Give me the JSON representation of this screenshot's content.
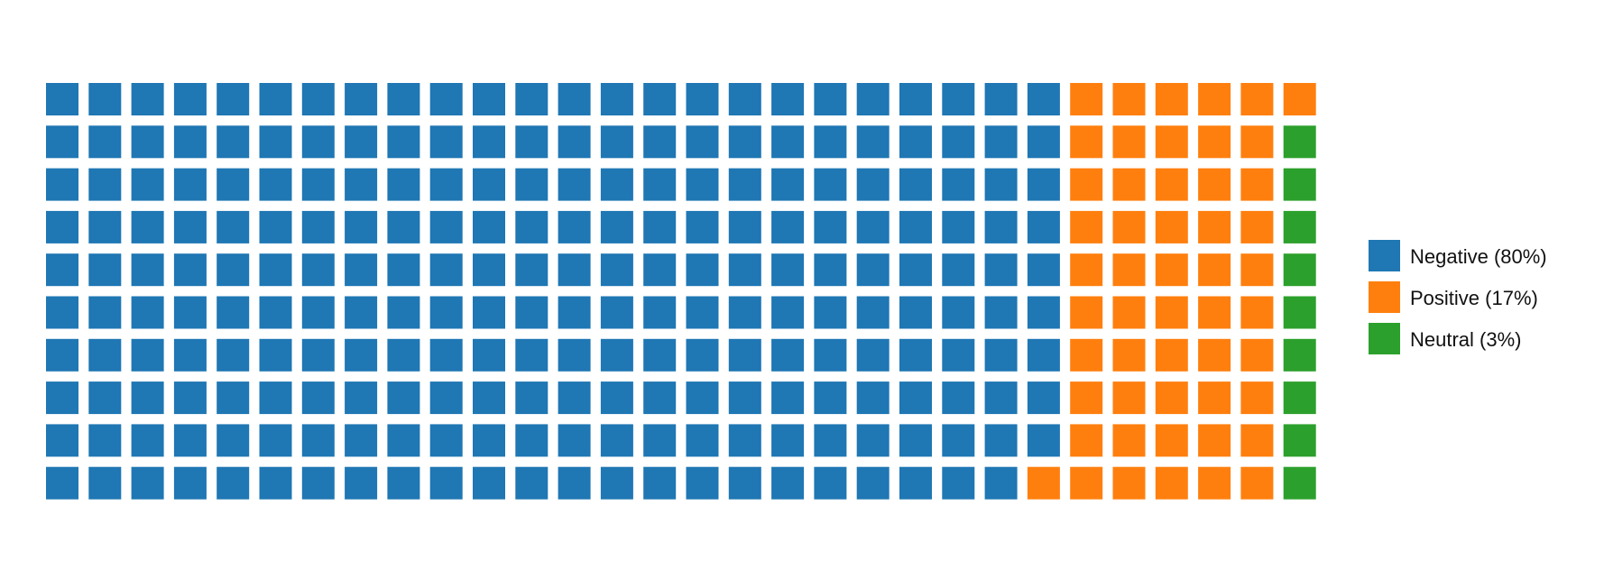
{
  "chart_data": {
    "type": "waffle",
    "rows": 10,
    "columns": 30,
    "fill_order": "column-major, top-to-bottom, left-to-right",
    "categories": [
      {
        "label": "Negative (80%)",
        "name": "Negative",
        "percent": 80,
        "count": 239,
        "color": "#1f77b4"
      },
      {
        "label": "Positive (17%)",
        "name": "Positive",
        "percent": 17,
        "count": 52,
        "color": "#ff7f0e"
      },
      {
        "label": "Neutral (3%)",
        "name": "Neutral",
        "percent": 3,
        "count": 9,
        "color": "#2ca02c"
      }
    ],
    "legend_position": "right",
    "grid": false
  }
}
